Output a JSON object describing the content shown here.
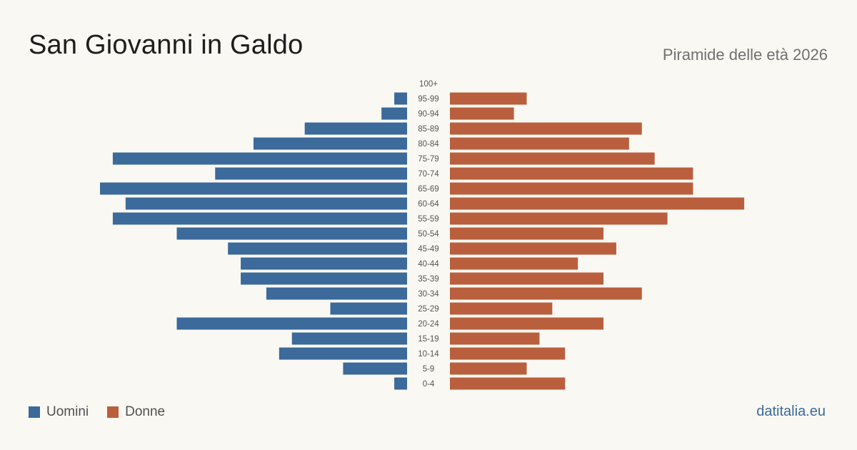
{
  "title": "San Giovanni in Galdo",
  "subtitle": "Piramide delle età 2026",
  "source": "datitalia.eu",
  "colors": {
    "men": "#3b6a9b",
    "women": "#b95f3d",
    "source": "#3b6a9b"
  },
  "legend": {
    "men_label": "Uomini",
    "women_label": "Donne"
  },
  "chart_data": {
    "type": "bar",
    "orientation": "horizontal-pyramid",
    "categories": [
      "100+",
      "95-99",
      "90-94",
      "85-89",
      "80-84",
      "75-79",
      "70-74",
      "65-69",
      "60-64",
      "55-59",
      "50-54",
      "45-49",
      "40-44",
      "35-39",
      "30-34",
      "25-29",
      "20-24",
      "15-19",
      "10-14",
      "5-9",
      "0-4"
    ],
    "series": [
      {
        "name": "Uomini",
        "values": [
          0,
          1,
          2,
          8,
          12,
          23,
          15,
          24,
          22,
          23,
          18,
          14,
          13,
          13,
          11,
          6,
          18,
          9,
          10,
          5,
          1
        ]
      },
      {
        "name": "Donne",
        "values": [
          0,
          6,
          5,
          15,
          14,
          16,
          19,
          19,
          23,
          17,
          12,
          13,
          10,
          12,
          15,
          8,
          12,
          7,
          9,
          6,
          9
        ]
      }
    ],
    "xlim": [
      0,
      24
    ],
    "grid": false,
    "legend_position": "bottom-left"
  }
}
